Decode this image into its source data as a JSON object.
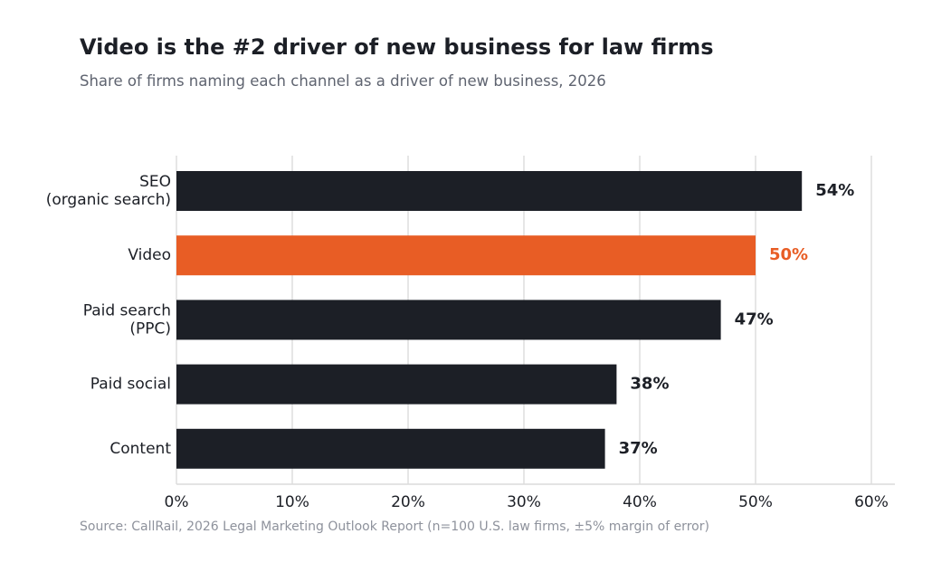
{
  "header": {
    "title": "Video is the #2 driver of new business for law firms",
    "subtitle": "Share of firms naming each channel as a driver of new business, 2026"
  },
  "footer": {
    "source": "Source: CallRail, 2026 Legal Marketing Outlook Report (n=100 U.S. law firms, ±5% margin of error)"
  },
  "colors": {
    "bar_default": "#1c1f26",
    "bar_highlight": "#e85d25",
    "grid": "#e6e6e6",
    "text": "#1c1f26"
  },
  "chart_data": {
    "type": "bar",
    "orientation": "horizontal",
    "title": "Video is the #2 driver of new business for law firms",
    "subtitle": "Share of firms naming each channel as a driver of new business, 2026",
    "categories": [
      [
        "SEO",
        "(organic search)"
      ],
      [
        "Video"
      ],
      [
        "Paid search",
        "(PPC)"
      ],
      [
        "Paid social"
      ],
      [
        "Content"
      ]
    ],
    "values": [
      54,
      50,
      47,
      38,
      37
    ],
    "value_labels": [
      "54%",
      "50%",
      "47%",
      "38%",
      "37%"
    ],
    "highlight_index": 1,
    "xlim": [
      0,
      62
    ],
    "xticks": [
      0,
      10,
      20,
      30,
      40,
      50,
      60
    ],
    "xtick_labels": [
      "0%",
      "10%",
      "20%",
      "30%",
      "40%",
      "50%",
      "60%"
    ],
    "grid": "vertical",
    "legend": "none"
  }
}
